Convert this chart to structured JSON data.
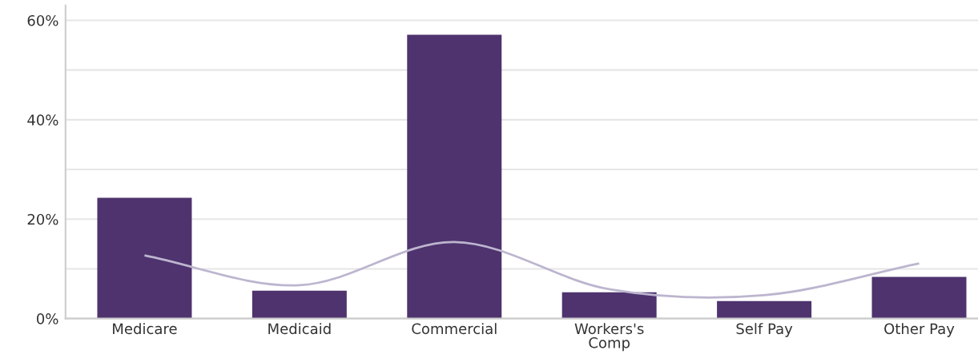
{
  "chart_data": {
    "type": "bar",
    "categories": [
      "Medicare",
      "Medicaid",
      "Commercial",
      "Workers's\nComp",
      "Self Pay",
      "Other Pay"
    ],
    "series": [
      {
        "color": "#4e336e",
        "values": [
          24.3,
          5.6,
          57.1,
          5.3,
          3.5,
          8.4
        ]
      },
      {
        "type": "line",
        "color": "#bdb5cf",
        "values": [
          12.7,
          6.7,
          15.4,
          5.9,
          4.7,
          11.1
        ]
      }
    ],
    "ylim": [
      0,
      63
    ],
    "yticks": [
      {
        "value": 0,
        "label": "0%"
      },
      {
        "value": 10,
        "label": null
      },
      {
        "value": 20,
        "label": "20%"
      },
      {
        "value": 30,
        "label": null
      },
      {
        "value": 40,
        "label": "40%"
      },
      {
        "value": 50,
        "label": null
      },
      {
        "value": 60,
        "label": "60%"
      }
    ],
    "grid": "y",
    "marker": "none",
    "line_style": "solid"
  }
}
